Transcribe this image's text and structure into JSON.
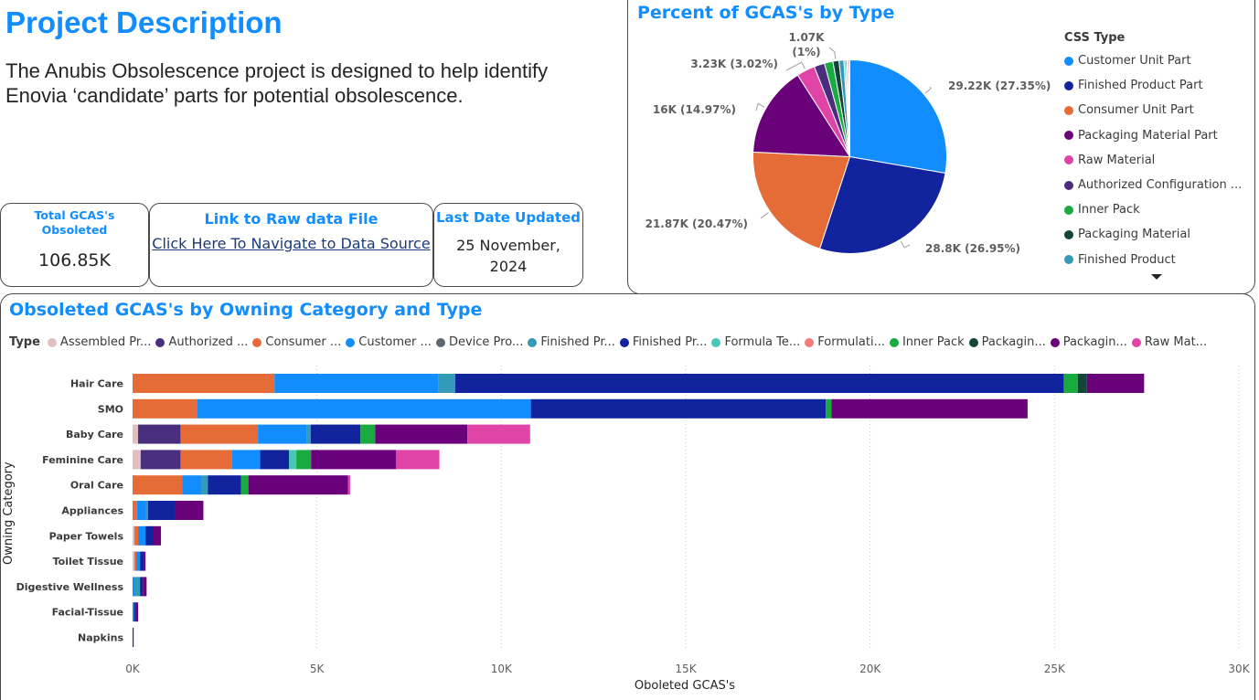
{
  "project": {
    "title": "Project Description",
    "description": "The Anubis Obsolescence project is designed to help identify Enovia ‘candidate’ parts for potential obsolescence."
  },
  "cards": {
    "total": {
      "title": "Total GCAS's Obsoleted",
      "value": "106.85K"
    },
    "link": {
      "title": "Link to Raw data File",
      "text": "Click Here To Navigate to Data Source"
    },
    "updated": {
      "title": "Last Date Updated",
      "line1": "25 November,",
      "line2": "2024"
    }
  },
  "colors": {
    "accent": "#118dff",
    "Customer Unit Part": "#118dff",
    "Finished Product Part": "#12239e",
    "Consumer Unit Part": "#e66c37",
    "Packaging Material Part": "#6b007b",
    "Raw Material": "#e044a7",
    "Authorized Configuration": "#4a2e7e",
    "Inner Pack": "#1aab40",
    "Packaging Material": "#15443a",
    "Finished Product": "#3599b8",
    "Assembled Product": "#dfbfbf",
    "Device Product": "#5e6770",
    "Formula Technical": "#4ac5bb",
    "Formulation": "#f27b7b"
  },
  "chart_data": [
    {
      "type": "pie",
      "title": "Percent of GCAS's by Type",
      "legend_title": "CSS Type",
      "legend_items": [
        "Customer Unit Part",
        "Finished Product Part",
        "Consumer Unit Part",
        "Packaging Material Part",
        "Raw Material",
        "Authorized Configuration ...",
        "Inner Pack",
        "Packaging Material",
        "Finished Product"
      ],
      "legend_placement": "right",
      "slices": [
        {
          "name": "Customer Unit Part",
          "value": 29220,
          "label": "29.22K (27.35%)"
        },
        {
          "name": "Finished Product Part",
          "value": 28800,
          "label": "28.8K (26.95%)"
        },
        {
          "name": "Consumer Unit Part",
          "value": 21870,
          "label": "21.87K (20.47%)"
        },
        {
          "name": "Packaging Material Part",
          "value": 16000,
          "label": "16K (14.97%)"
        },
        {
          "name": "Raw Material",
          "value": 3230,
          "label": "3.23K (3.02%)"
        },
        {
          "name": "Authorized Configuration",
          "value": 1850
        },
        {
          "name": "Inner Pack",
          "value": 1500
        },
        {
          "name": "Packaging Material",
          "value": 1070,
          "label": "1.07K (1%)"
        },
        {
          "name": "Finished Product",
          "value": 850
        },
        {
          "name": "Formula Technical",
          "value": 300
        },
        {
          "name": "Device Product",
          "value": 250
        },
        {
          "name": "Assembled Product",
          "value": 250
        },
        {
          "name": "Formulation",
          "value": 240
        }
      ]
    },
    {
      "type": "bar",
      "orientation": "horizontal",
      "stacked": true,
      "title": "Obsoleted GCAS's by Owning Category and Type",
      "xlabel": "Oboleted GCAS's",
      "ylabel": "Owning Category",
      "xlim": [
        0,
        30000
      ],
      "xticks": [
        "0K",
        "5K",
        "10K",
        "15K",
        "20K",
        "25K",
        "30K"
      ],
      "grid": "vertical dotted",
      "legend_title": "Type",
      "legend_placement": "top",
      "legend_items": [
        "Assembled Pr...",
        "Authorized ...",
        "Consumer ...",
        "Customer ...",
        "Device Pro...",
        "Finished Pr...",
        "Finished Pr...",
        "Formula Te...",
        "Formulati...",
        "Inner Pack",
        "Packagin...",
        "Packagin...",
        "Raw Mat..."
      ],
      "legend_series": [
        "Assembled Product",
        "Authorized Configuration",
        "Consumer Unit Part",
        "Customer Unit Part",
        "Device Product",
        "Finished Product",
        "Finished Product Part",
        "Formula Technical",
        "Formulation",
        "Inner Pack",
        "Packaging Material",
        "Packaging Material Part",
        "Raw Material"
      ],
      "categories": [
        "Hair Care",
        "SMO",
        "Baby Care",
        "Feminine Care",
        "Oral Care",
        "Appliances",
        "Paper Towels",
        "Toilet Tissue",
        "Digestive Wellness",
        "Facial-Tissue",
        "Napkins"
      ],
      "series": [
        {
          "name": "Assembled Product",
          "values": [
            0,
            0,
            150,
            220,
            0,
            0,
            50,
            50,
            0,
            0,
            0
          ]
        },
        {
          "name": "Authorized Configuration",
          "values": [
            0,
            0,
            1150,
            1080,
            0,
            0,
            0,
            0,
            0,
            0,
            0
          ]
        },
        {
          "name": "Consumer Unit Part",
          "values": [
            3850,
            1750,
            2100,
            1400,
            1350,
            120,
            100,
            50,
            0,
            0,
            0
          ]
        },
        {
          "name": "Customer Unit Part",
          "values": [
            4450,
            9050,
            1330,
            760,
            520,
            250,
            200,
            100,
            50,
            40,
            0
          ]
        },
        {
          "name": "Device Product",
          "values": [
            0,
            0,
            0,
            0,
            0,
            0,
            0,
            0,
            0,
            0,
            0
          ]
        },
        {
          "name": "Finished Product",
          "values": [
            450,
            0,
            100,
            0,
            170,
            50,
            0,
            0,
            150,
            0,
            0
          ]
        },
        {
          "name": "Finished Product Part",
          "values": [
            16500,
            8000,
            1350,
            780,
            900,
            720,
            220,
            100,
            80,
            50,
            30
          ]
        },
        {
          "name": "Formula Technical",
          "values": [
            0,
            0,
            0,
            200,
            0,
            0,
            0,
            0,
            0,
            0,
            0
          ]
        },
        {
          "name": "Formulation",
          "values": [
            0,
            0,
            0,
            0,
            0,
            0,
            0,
            0,
            0,
            0,
            0
          ]
        },
        {
          "name": "Inner Pack",
          "values": [
            380,
            150,
            400,
            400,
            200,
            0,
            0,
            0,
            0,
            0,
            0
          ]
        },
        {
          "name": "Packaging Material",
          "values": [
            250,
            0,
            0,
            0,
            0,
            0,
            0,
            0,
            0,
            0,
            0
          ]
        },
        {
          "name": "Packaging Material Part",
          "values": [
            1550,
            5320,
            2500,
            2300,
            2700,
            780,
            200,
            50,
            100,
            60,
            0
          ]
        },
        {
          "name": "Raw Material",
          "values": [
            0,
            0,
            1700,
            1180,
            60,
            0,
            0,
            0,
            0,
            0,
            0
          ]
        }
      ]
    }
  ]
}
